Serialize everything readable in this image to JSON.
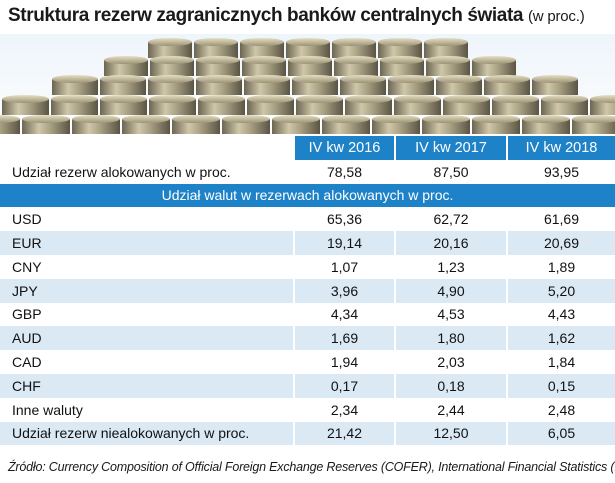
{
  "title": "Struktura rezerw zagranicznych banków centralnych świata",
  "subtitle": "(w proc.)",
  "source": "Źródło: Currency Composition of Official Foreign Exchange Reserves (COFER), International Financial Statistics (IFS)",
  "colors": {
    "header": "#1e82c8",
    "stripe": "#dbe9f5"
  },
  "chart_data": {
    "type": "table",
    "columns": [
      "IV kw 2016",
      "IV kw 2017",
      "IV kw 2018"
    ],
    "allocated_row": {
      "label": "Udział rezerw alokowanych w proc.",
      "values": [
        "78,58",
        "87,50",
        "93,95"
      ]
    },
    "section_header": "Udział walut w rezerwach alokowanych w proc.",
    "rows": [
      {
        "label": "USD",
        "values": [
          "65,36",
          "62,72",
          "61,69"
        ]
      },
      {
        "label": "EUR",
        "values": [
          "19,14",
          "20,16",
          "20,69"
        ]
      },
      {
        "label": "CNY",
        "values": [
          "1,07",
          "1,23",
          "1,89"
        ]
      },
      {
        "label": "JPY",
        "values": [
          "3,96",
          "4,90",
          "5,20"
        ]
      },
      {
        "label": "GBP",
        "values": [
          "4,34",
          "4,53",
          "4,43"
        ]
      },
      {
        "label": "AUD",
        "values": [
          "1,69",
          "1,80",
          "1,62"
        ]
      },
      {
        "label": "CAD",
        "values": [
          "1,94",
          "2,03",
          "1,84"
        ]
      },
      {
        "label": "CHF",
        "values": [
          "0,17",
          "0,18",
          "0,15"
        ]
      },
      {
        "label": "Inne waluty",
        "values": [
          "2,34",
          "2,44",
          "2,48"
        ]
      },
      {
        "label": "Udział rezerw niealokowanych w proc.",
        "values": [
          "21,42",
          "12,50",
          "6,05"
        ]
      }
    ]
  }
}
